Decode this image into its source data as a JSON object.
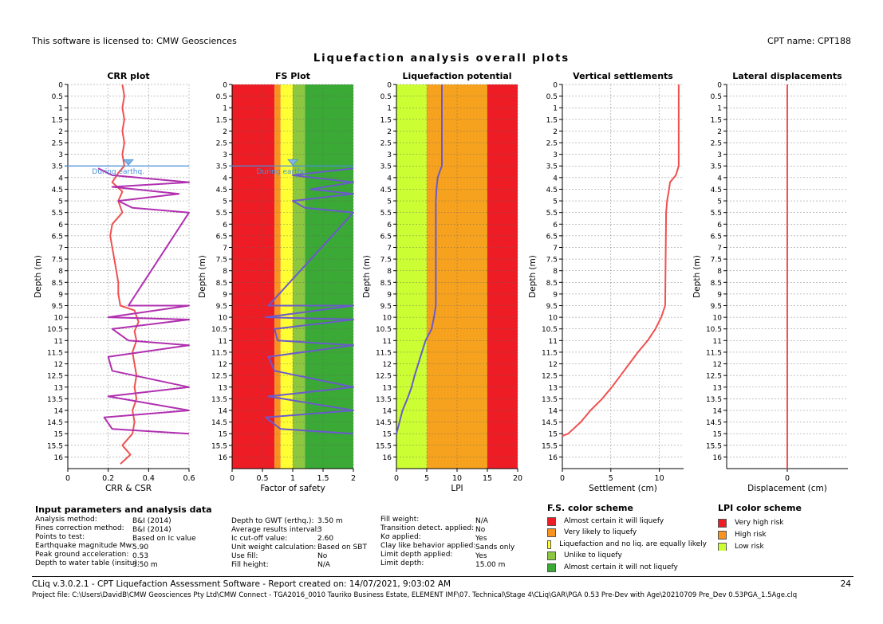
{
  "header": {
    "license": "This software is licensed to: CMW Geosciences",
    "cpt_name": "CPT name: CPT188",
    "title": "Liquefaction analysis overall plots"
  },
  "chart_data": [
    {
      "type": "line",
      "title": "CRR plot",
      "xlabel": "CRR & CSR",
      "ylabel": "Depth (m)",
      "xlim": [
        0,
        0.6
      ],
      "ylim": [
        16.5,
        0
      ],
      "xticks": [
        "0",
        "0.2",
        "0.4",
        "0.6"
      ],
      "yticks": [
        "0",
        "0.5",
        "1",
        "1.5",
        "2",
        "2.5",
        "3",
        "3.5",
        "4",
        "4.5",
        "5",
        "5.5",
        "6",
        "6.5",
        "7",
        "7.5",
        "8",
        "8.5",
        "9",
        "9.5",
        "10",
        "10.5",
        "11",
        "11.5",
        "12",
        "12.5",
        "13",
        "13.5",
        "14",
        "14.5",
        "15",
        "15.5",
        "16"
      ],
      "grid": true,
      "annotation": "During earthq.",
      "gwt_depth": 3.5,
      "series": [
        {
          "color": "#f05050",
          "points": [
            [
              0.27,
              0
            ],
            [
              0.28,
              0.5
            ],
            [
              0.27,
              1
            ],
            [
              0.28,
              1.5
            ],
            [
              0.27,
              2
            ],
            [
              0.28,
              2.5
            ],
            [
              0.27,
              3
            ],
            [
              0.28,
              3.5
            ],
            [
              0.25,
              3.8
            ],
            [
              0.22,
              4.2
            ],
            [
              0.27,
              4.6
            ],
            [
              0.25,
              5
            ],
            [
              0.27,
              5.5
            ],
            [
              0.22,
              6
            ],
            [
              0.21,
              6.5
            ],
            [
              0.22,
              7
            ],
            [
              0.23,
              7.5
            ],
            [
              0.24,
              8
            ],
            [
              0.25,
              8.5
            ],
            [
              0.25,
              9
            ],
            [
              0.26,
              9.5
            ],
            [
              0.33,
              9.7
            ],
            [
              0.35,
              10.2
            ],
            [
              0.33,
              10.6
            ],
            [
              0.34,
              11
            ],
            [
              0.32,
              11.5
            ],
            [
              0.33,
              12
            ],
            [
              0.34,
              12.5
            ],
            [
              0.33,
              13
            ],
            [
              0.34,
              13.5
            ],
            [
              0.32,
              14
            ],
            [
              0.33,
              14.5
            ],
            [
              0.32,
              15
            ],
            [
              0.27,
              15.5
            ],
            [
              0.31,
              15.9
            ],
            [
              0.26,
              16.3
            ]
          ]
        },
        {
          "color": "#b030b0",
          "points": [
            [
              0.15,
              3.6
            ],
            [
              0.22,
              3.9
            ],
            [
              0.6,
              4.2
            ],
            [
              0.22,
              4.4
            ],
            [
              0.55,
              4.7
            ],
            [
              0.25,
              5
            ],
            [
              0.32,
              5.3
            ],
            [
              0.6,
              5.5
            ],
            [
              0.3,
              9.5
            ],
            [
              0.6,
              9.5
            ],
            [
              0.2,
              10
            ],
            [
              0.6,
              10.1
            ],
            [
              0.22,
              10.5
            ],
            [
              0.3,
              11
            ],
            [
              0.6,
              11.2
            ],
            [
              0.2,
              11.7
            ],
            [
              0.22,
              12.3
            ],
            [
              0.6,
              13
            ],
            [
              0.2,
              13.4
            ],
            [
              0.6,
              14
            ],
            [
              0.18,
              14.3
            ],
            [
              0.22,
              14.8
            ],
            [
              0.6,
              15
            ]
          ]
        }
      ]
    },
    {
      "type": "line",
      "title": "FS Plot",
      "xlabel": "Factor of safety",
      "ylabel": "Depth (m)",
      "xlim": [
        0,
        2
      ],
      "ylim": [
        16.5,
        0
      ],
      "xticks": [
        "0",
        "0.5",
        "1",
        "1.5",
        "2"
      ],
      "yticks": [
        "0",
        "0.5",
        "1",
        "1.5",
        "2",
        "2.5",
        "3",
        "3.5",
        "4",
        "4.5",
        "5",
        "5.5",
        "6",
        "6.5",
        "7",
        "7.5",
        "8",
        "8.5",
        "9",
        "9.5",
        "10",
        "10.5",
        "11",
        "11.5",
        "12",
        "12.5",
        "13",
        "13.5",
        "14",
        "14.5",
        "15",
        "15.5",
        "16"
      ],
      "grid": true,
      "annotation": "During earthq.",
      "gwt_depth": 3.5,
      "bands": [
        {
          "from": 0,
          "to": 0.7,
          "color": "#ee1c24"
        },
        {
          "from": 0.7,
          "to": 0.8,
          "color": "#f7931e"
        },
        {
          "from": 0.8,
          "to": 1.0,
          "color": "#ffff33"
        },
        {
          "from": 1.0,
          "to": 1.2,
          "color": "#8dc63f"
        },
        {
          "from": 1.2,
          "to": 2.0,
          "color": "#3aa935"
        }
      ],
      "series": [
        {
          "color": "#6a5acd",
          "points": [
            [
              2,
              3.6
            ],
            [
              1.0,
              3.9
            ],
            [
              2,
              4.2
            ],
            [
              1.3,
              4.5
            ],
            [
              2,
              4.7
            ],
            [
              1.0,
              5.0
            ],
            [
              1.2,
              5.3
            ],
            [
              2,
              5.5
            ],
            [
              0.6,
              9.5
            ],
            [
              2,
              9.5
            ],
            [
              0.55,
              10
            ],
            [
              2,
              10.1
            ],
            [
              0.7,
              10.5
            ],
            [
              0.75,
              11
            ],
            [
              2,
              11.2
            ],
            [
              0.6,
              11.7
            ],
            [
              0.7,
              12.3
            ],
            [
              2,
              13
            ],
            [
              0.6,
              13.4
            ],
            [
              2,
              14
            ],
            [
              0.55,
              14.3
            ],
            [
              0.8,
              14.8
            ],
            [
              2,
              15
            ]
          ]
        }
      ]
    },
    {
      "type": "line",
      "title": "Liquefaction potential",
      "xlabel": "LPI",
      "ylabel": "Depth (m)",
      "xlim": [
        0,
        20
      ],
      "ylim": [
        16.5,
        0
      ],
      "xticks": [
        "0",
        "5",
        "10",
        "15",
        "20"
      ],
      "yticks": [
        "0",
        "0.5",
        "1",
        "1.5",
        "2",
        "2.5",
        "3",
        "3.5",
        "4",
        "4.5",
        "5",
        "5.5",
        "6",
        "6.5",
        "7",
        "7.5",
        "8",
        "8.5",
        "9",
        "9.5",
        "10",
        "10.5",
        "11",
        "11.5",
        "12",
        "12.5",
        "13",
        "13.5",
        "14",
        "14.5",
        "15",
        "15.5",
        "16"
      ],
      "grid": true,
      "bands": [
        {
          "from": 0,
          "to": 5,
          "color": "#ccff33"
        },
        {
          "from": 5,
          "to": 15,
          "color": "#f7a21e"
        },
        {
          "from": 15,
          "to": 20,
          "color": "#ee1c24"
        }
      ],
      "series": [
        {
          "color": "#6a5acd",
          "points": [
            [
              7.5,
              0
            ],
            [
              7.5,
              3.5
            ],
            [
              7.2,
              3.7
            ],
            [
              6.8,
              4
            ],
            [
              6.6,
              4.5
            ],
            [
              6.5,
              5
            ],
            [
              6.5,
              9.5
            ],
            [
              6.2,
              10
            ],
            [
              5.8,
              10.5
            ],
            [
              4.8,
              11
            ],
            [
              4.2,
              11.5
            ],
            [
              3.6,
              12
            ],
            [
              3.0,
              12.5
            ],
            [
              2.5,
              13
            ],
            [
              1.8,
              13.5
            ],
            [
              1.0,
              14
            ],
            [
              0.5,
              14.5
            ],
            [
              0,
              15
            ]
          ]
        }
      ]
    },
    {
      "type": "line",
      "title": "Vertical settlements",
      "xlabel": "Settlement (cm)",
      "ylabel": "Depth (m)",
      "xlim": [
        0,
        12.5
      ],
      "ylim": [
        16.5,
        0
      ],
      "xticks": [
        "0",
        "5",
        "10"
      ],
      "yticks": [
        "0",
        "0.5",
        "1",
        "1.5",
        "2",
        "2.5",
        "3",
        "3.5",
        "4",
        "4.5",
        "5",
        "5.5",
        "6",
        "6.5",
        "7",
        "7.5",
        "8",
        "8.5",
        "9",
        "9.5",
        "10",
        "10.5",
        "11",
        "11.5",
        "12",
        "12.5",
        "13",
        "13.5",
        "14",
        "14.5",
        "15",
        "15.5",
        "16"
      ],
      "grid": true,
      "series": [
        {
          "color": "#f05050",
          "points": [
            [
              12,
              0
            ],
            [
              12,
              3.5
            ],
            [
              11.7,
              3.9
            ],
            [
              11.1,
              4.2
            ],
            [
              11,
              4.5
            ],
            [
              10.8,
              5
            ],
            [
              10.7,
              5.5
            ],
            [
              10.6,
              9.5
            ],
            [
              10.2,
              10
            ],
            [
              9.6,
              10.5
            ],
            [
              8.8,
              11
            ],
            [
              7.8,
              11.5
            ],
            [
              6.9,
              12
            ],
            [
              6,
              12.5
            ],
            [
              5.1,
              13
            ],
            [
              4.1,
              13.5
            ],
            [
              2.9,
              14
            ],
            [
              1.9,
              14.5
            ],
            [
              0.6,
              15
            ],
            [
              0,
              15.1
            ]
          ]
        }
      ]
    },
    {
      "type": "line",
      "title": "Lateral displacements",
      "xlabel": "Displacement (cm)",
      "ylabel": "Depth (m)",
      "xlim": [
        -1,
        1
      ],
      "ylim": [
        16.5,
        0
      ],
      "xticks": [
        "0"
      ],
      "yticks": [
        "0",
        "0.5",
        "1",
        "1.5",
        "2",
        "2.5",
        "3",
        "3.5",
        "4",
        "4.5",
        "5",
        "5.5",
        "6",
        "6.5",
        "7",
        "7.5",
        "8",
        "8.5",
        "9",
        "9.5",
        "10",
        "10.5",
        "11",
        "11.5",
        "12",
        "12.5",
        "13",
        "13.5",
        "14",
        "14.5",
        "15",
        "15.5",
        "16"
      ],
      "grid": true,
      "series": [
        {
          "color": "#f05050",
          "points": [
            [
              0,
              0
            ],
            [
              0,
              16.5
            ]
          ]
        }
      ]
    }
  ],
  "inputs": {
    "title": "Input parameters and analysis data",
    "col1": [
      {
        "label": "Analysis method:",
        "value": "B&I (2014)"
      },
      {
        "label": "Fines correction method:",
        "value": "B&I (2014)"
      },
      {
        "label": "Points to test:",
        "value": "Based on Ic value"
      },
      {
        "label": "Earthquake magnitude Mw:",
        "value": "5.90"
      },
      {
        "label": "Peak ground acceleration:",
        "value": "0.53"
      },
      {
        "label": "Depth to water table (insitu):",
        "value": "3.50 m"
      }
    ],
    "col2": [
      {
        "label": "Depth to GWT (erthq.):",
        "value": "3.50 m"
      },
      {
        "label": "Average results interval:",
        "value": "3"
      },
      {
        "label": "Ic cut-off value:",
        "value": "2.60"
      },
      {
        "label": "Unit weight calculation:",
        "value": "Based on SBT"
      },
      {
        "label": "Use fill:",
        "value": "No"
      },
      {
        "label": "Fill height:",
        "value": "N/A"
      }
    ],
    "col3": [
      {
        "label": "Fill weight:",
        "value": "N/A"
      },
      {
        "label": "Transition detect. applied:",
        "value": "No"
      },
      {
        "label": "Kσ applied:",
        "value": "Yes"
      },
      {
        "label": "Clay like behavior applied:",
        "value": "Sands only"
      },
      {
        "label": "Limit depth applied:",
        "value": "Yes"
      },
      {
        "label": "Limit depth:",
        "value": "15.00 m"
      }
    ]
  },
  "fs_scheme": {
    "title": "F.S. color scheme",
    "items": [
      {
        "color": "#ee1c24",
        "label": "Almost certain it will liquefy"
      },
      {
        "color": "#f7931e",
        "label": "Very likely to liquefy"
      },
      {
        "color": "#ffff33",
        "label": "Liquefaction and no liq. are equally likely"
      },
      {
        "color": "#8dc63f",
        "label": "Unlike to liquefy"
      },
      {
        "color": "#3aa935",
        "label": "Almost certain it will not liquefy"
      }
    ]
  },
  "lpi_scheme": {
    "title": "LPI color scheme",
    "items": [
      {
        "color": "#ee1c24",
        "label": "Very high risk"
      },
      {
        "color": "#f7931e",
        "label": "High risk"
      },
      {
        "color": "#ccff33",
        "label": "Low risk"
      }
    ]
  },
  "footer": {
    "line1": "CLiq v.3.0.2.1 - CPT Liquefaction Assessment Software - Report created on: 14/07/2021, 9:03:02 AM",
    "page": "24",
    "line2": "Project file: C:\\Users\\DavidB\\CMW Geosciences Pty Ltd\\CMW Connect - TGA2016_0010 Tauriko Business Estate, ELEMENT IMF\\07. Technical\\Stage 4\\CLiq\\GAR\\PGA 0.53 Pre-Dev with Age\\20210709 Pre_Dev 0.53PGA_1.5Age.clq"
  }
}
